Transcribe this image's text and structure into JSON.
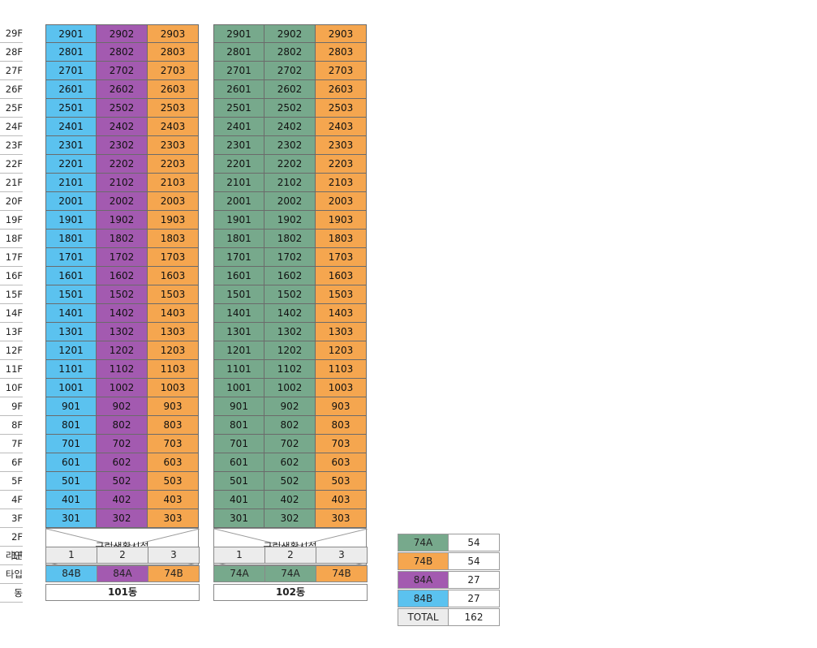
{
  "floors": [
    "29F",
    "28F",
    "27F",
    "26F",
    "25F",
    "24F",
    "23F",
    "22F",
    "21F",
    "20F",
    "19F",
    "18F",
    "17F",
    "16F",
    "15F",
    "14F",
    "13F",
    "12F",
    "11F",
    "10F",
    "9F",
    "8F",
    "7F",
    "6F",
    "5F",
    "4F",
    "3F",
    "2F",
    "1F"
  ],
  "row_labels": {
    "line": "라인",
    "type": "타입",
    "building": "동"
  },
  "colors": {
    "84B": "#5bc2ef",
    "84A": "#a35ab0",
    "74B": "#f5a64f",
    "74A": "#77a98c"
  },
  "buildings": [
    {
      "name": "101동",
      "commercial_label": "근린생활시설",
      "lines": [
        {
          "line": "1",
          "type": "84B"
        },
        {
          "line": "2",
          "type": "84A"
        },
        {
          "line": "3",
          "type": "74B"
        }
      ],
      "units": [
        [
          "2901",
          "2902",
          "2903"
        ],
        [
          "2801",
          "2802",
          "2803"
        ],
        [
          "2701",
          "2702",
          "2703"
        ],
        [
          "2601",
          "2602",
          "2603"
        ],
        [
          "2501",
          "2502",
          "2503"
        ],
        [
          "2401",
          "2402",
          "2403"
        ],
        [
          "2301",
          "2302",
          "2303"
        ],
        [
          "2201",
          "2202",
          "2203"
        ],
        [
          "2101",
          "2102",
          "2103"
        ],
        [
          "2001",
          "2002",
          "2003"
        ],
        [
          "1901",
          "1902",
          "1903"
        ],
        [
          "1801",
          "1802",
          "1803"
        ],
        [
          "1701",
          "1702",
          "1703"
        ],
        [
          "1601",
          "1602",
          "1603"
        ],
        [
          "1501",
          "1502",
          "1503"
        ],
        [
          "1401",
          "1402",
          "1403"
        ],
        [
          "1301",
          "1302",
          "1303"
        ],
        [
          "1201",
          "1202",
          "1203"
        ],
        [
          "1101",
          "1102",
          "1103"
        ],
        [
          "1001",
          "1002",
          "1003"
        ],
        [
          "901",
          "902",
          "903"
        ],
        [
          "801",
          "802",
          "803"
        ],
        [
          "701",
          "702",
          "703"
        ],
        [
          "601",
          "602",
          "603"
        ],
        [
          "501",
          "502",
          "503"
        ],
        [
          "401",
          "402",
          "403"
        ],
        [
          "301",
          "302",
          "303"
        ]
      ]
    },
    {
      "name": "102동",
      "commercial_label": "근린생활시설",
      "lines": [
        {
          "line": "1",
          "type": "74A"
        },
        {
          "line": "2",
          "type": "74A"
        },
        {
          "line": "3",
          "type": "74B"
        }
      ],
      "units": [
        [
          "2901",
          "2902",
          "2903"
        ],
        [
          "2801",
          "2802",
          "2803"
        ],
        [
          "2701",
          "2702",
          "2703"
        ],
        [
          "2601",
          "2602",
          "2603"
        ],
        [
          "2501",
          "2502",
          "2503"
        ],
        [
          "2401",
          "2402",
          "2403"
        ],
        [
          "2301",
          "2302",
          "2303"
        ],
        [
          "2201",
          "2202",
          "2203"
        ],
        [
          "2101",
          "2102",
          "2103"
        ],
        [
          "2001",
          "2002",
          "2003"
        ],
        [
          "1901",
          "1902",
          "1903"
        ],
        [
          "1801",
          "1802",
          "1803"
        ],
        [
          "1701",
          "1702",
          "1703"
        ],
        [
          "1601",
          "1602",
          "1603"
        ],
        [
          "1501",
          "1502",
          "1503"
        ],
        [
          "1401",
          "1402",
          "1403"
        ],
        [
          "1301",
          "1302",
          "1303"
        ],
        [
          "1201",
          "1202",
          "1203"
        ],
        [
          "1101",
          "1102",
          "1103"
        ],
        [
          "1001",
          "1002",
          "1003"
        ],
        [
          "901",
          "902",
          "903"
        ],
        [
          "801",
          "802",
          "803"
        ],
        [
          "701",
          "702",
          "703"
        ],
        [
          "601",
          "602",
          "603"
        ],
        [
          "501",
          "502",
          "503"
        ],
        [
          "401",
          "402",
          "403"
        ],
        [
          "301",
          "302",
          "303"
        ]
      ]
    }
  ],
  "summary": [
    {
      "type": "74A",
      "count": "54"
    },
    {
      "type": "74B",
      "count": "54"
    },
    {
      "type": "84A",
      "count": "27"
    },
    {
      "type": "84B",
      "count": "27"
    }
  ],
  "total": {
    "label": "TOTAL",
    "count": "162"
  }
}
